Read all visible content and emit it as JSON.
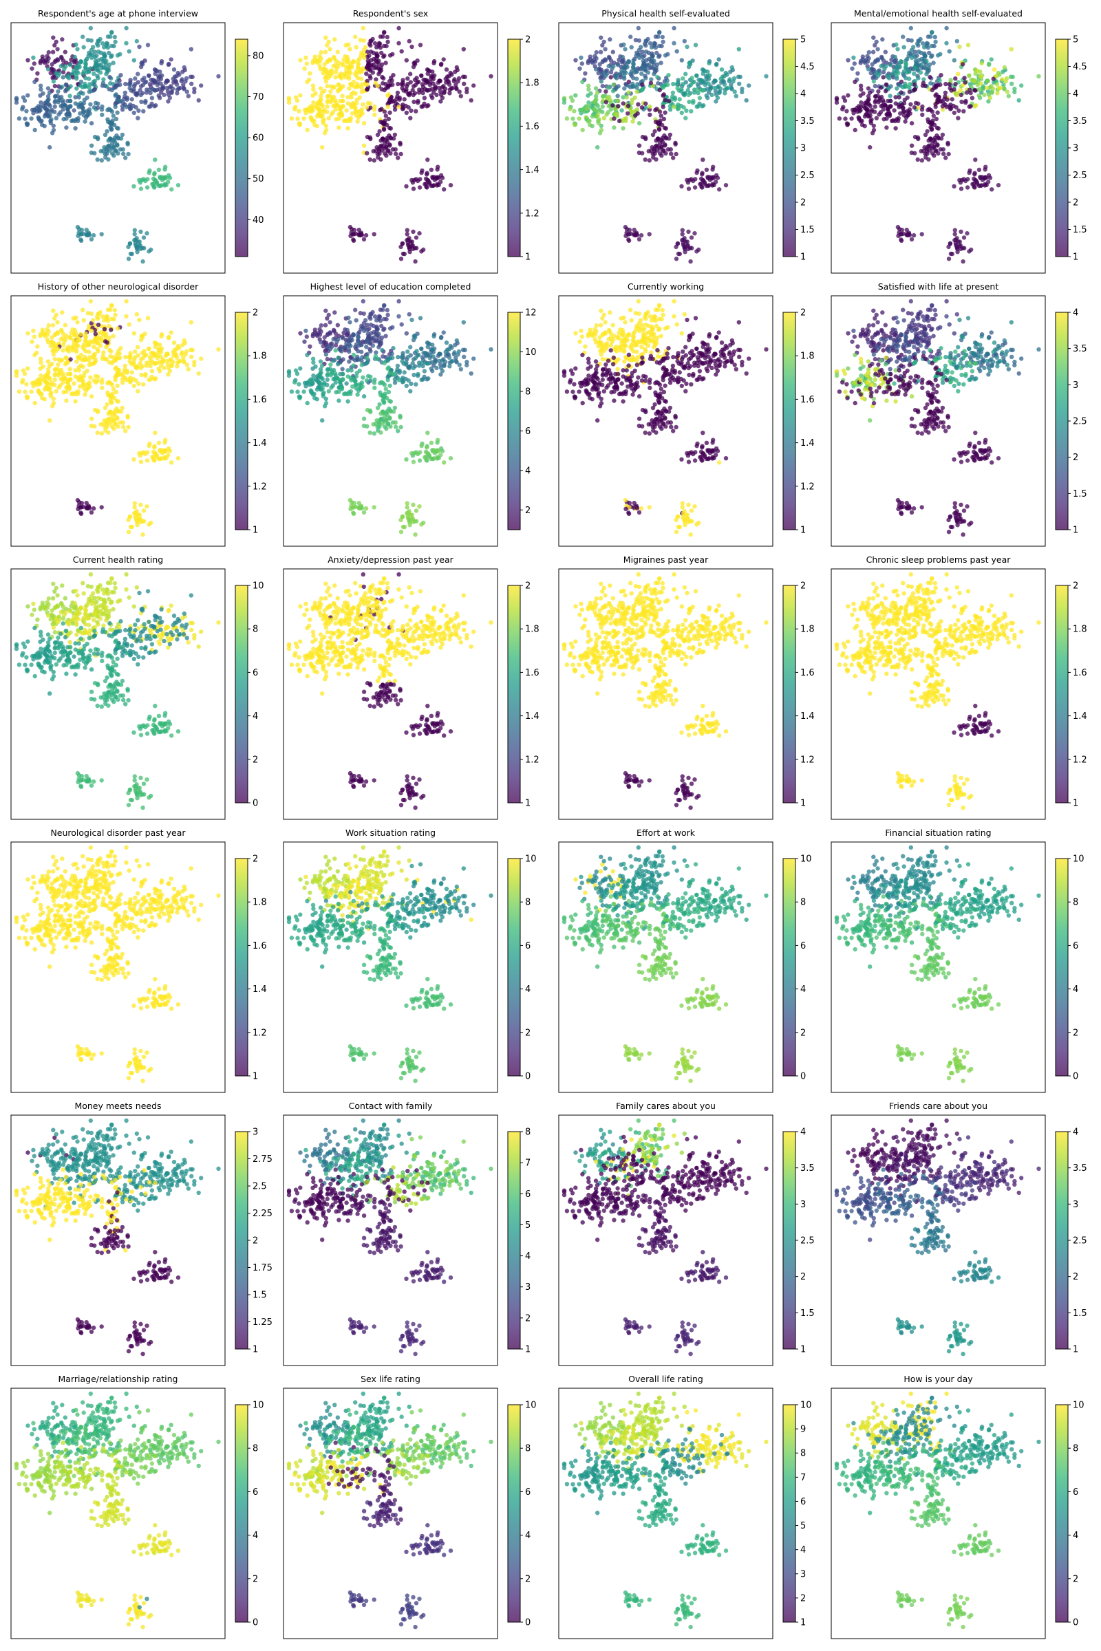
{
  "figure": {
    "panels": [
      {
        "title": "Respondent's age at phone interview",
        "cmin": 31,
        "cmax": 84,
        "ticks": [
          40,
          50,
          60,
          70,
          80
        ],
        "pattern": "age"
      },
      {
        "title": "Respondent's sex",
        "cmin": 1.0,
        "cmax": 2.0,
        "ticks": [
          1.0,
          1.2,
          1.4,
          1.6,
          1.8,
          2.0
        ],
        "pattern": "sex"
      },
      {
        "title": "Physical health self-evaluated",
        "cmin": 1.0,
        "cmax": 5.0,
        "ticks": [
          1.0,
          1.5,
          2.0,
          2.5,
          3.0,
          3.5,
          4.0,
          4.5,
          5.0
        ],
        "pattern": "low"
      },
      {
        "title": "Mental/emotional health self-evaluated",
        "cmin": 1.0,
        "cmax": 5.0,
        "ticks": [
          1.0,
          1.5,
          2.0,
          2.5,
          3.0,
          3.5,
          4.0,
          4.5,
          5.0
        ],
        "pattern": "verylow"
      },
      {
        "title": "History of other neurological disorder",
        "cmin": 1.0,
        "cmax": 2.0,
        "ticks": [
          1.0,
          1.2,
          1.4,
          1.6,
          1.8,
          2.0
        ],
        "pattern": "neuro"
      },
      {
        "title": "Highest level of education completed",
        "cmin": 1,
        "cmax": 12,
        "ticks": [
          2,
          4,
          6,
          8,
          10,
          12
        ],
        "pattern": "mixed"
      },
      {
        "title": "Currently working",
        "cmin": 1.0,
        "cmax": 2.0,
        "ticks": [
          1.0,
          1.2,
          1.4,
          1.6,
          1.8,
          2.0
        ],
        "pattern": "working"
      },
      {
        "title": "Satisfied with life at present",
        "cmin": 1.0,
        "cmax": 4.0,
        "ticks": [
          1.0,
          1.5,
          2.0,
          2.5,
          3.0,
          3.5,
          4.0
        ],
        "pattern": "verylow"
      },
      {
        "title": "Current health rating",
        "cmin": 0,
        "cmax": 10,
        "ticks": [
          0,
          2,
          4,
          6,
          8,
          10
        ],
        "pattern": "high"
      },
      {
        "title": "Anxiety/depression past year",
        "cmin": 1.0,
        "cmax": 2.0,
        "ticks": [
          1.0,
          1.2,
          1.4,
          1.6,
          1.8,
          2.0
        ],
        "pattern": "anxiety"
      },
      {
        "title": "Migraines past year",
        "cmin": 1.0,
        "cmax": 2.0,
        "ticks": [
          1.0,
          1.2,
          1.4,
          1.6,
          1.8,
          2.0
        ],
        "pattern": "migraine"
      },
      {
        "title": "Chronic sleep problems past year",
        "cmin": 1.0,
        "cmax": 2.0,
        "ticks": [
          1.0,
          1.2,
          1.4,
          1.6,
          1.8,
          2.0
        ],
        "pattern": "sleep"
      },
      {
        "title": "Neurological disorder past year",
        "cmin": 1.0,
        "cmax": 2.0,
        "ticks": [
          1.0,
          1.2,
          1.4,
          1.6,
          1.8,
          2.0
        ],
        "pattern": "allyellow"
      },
      {
        "title": "Work situation rating",
        "cmin": 0,
        "cmax": 10,
        "ticks": [
          0,
          2,
          4,
          6,
          8,
          10
        ],
        "pattern": "high"
      },
      {
        "title": "Effort at work",
        "cmin": 0,
        "cmax": 10,
        "ticks": [
          0,
          2,
          4,
          6,
          8,
          10
        ],
        "pattern": "high"
      },
      {
        "title": "Financial situation rating",
        "cmin": 0,
        "cmax": 10,
        "ticks": [
          0,
          2,
          4,
          6,
          8,
          10
        ],
        "pattern": "mid"
      },
      {
        "title": "Money meets needs",
        "cmin": 1.0,
        "cmax": 3.0,
        "ticks": [
          1.0,
          1.25,
          1.5,
          1.75,
          2.0,
          2.25,
          2.5,
          2.75,
          3.0
        ],
        "pattern": "money"
      },
      {
        "title": "Contact with family",
        "cmin": 1,
        "cmax": 8,
        "ticks": [
          1,
          2,
          3,
          4,
          5,
          6,
          7,
          8
        ],
        "pattern": "low"
      },
      {
        "title": "Family cares about you",
        "cmin": 1.0,
        "cmax": 4.0,
        "ticks": [
          1.0,
          1.5,
          2.0,
          2.5,
          3.0,
          3.5,
          4.0
        ],
        "pattern": "verylow"
      },
      {
        "title": "Friends care about you",
        "cmin": 1.0,
        "cmax": 4.0,
        "ticks": [
          1.0,
          1.5,
          2.0,
          2.5,
          3.0,
          3.5,
          4.0
        ],
        "pattern": "low"
      },
      {
        "title": "Marriage/relationship rating",
        "cmin": 0,
        "cmax": 10,
        "ticks": [
          0,
          2,
          4,
          6,
          8,
          10
        ],
        "pattern": "high"
      },
      {
        "title": "Sex life rating",
        "cmin": 0,
        "cmax": 10,
        "ticks": [
          0,
          2,
          4,
          6,
          8,
          10
        ],
        "pattern": "mixed"
      },
      {
        "title": "Overall life rating",
        "cmin": 1,
        "cmax": 10,
        "ticks": [
          1,
          2,
          3,
          4,
          5,
          6,
          7,
          8,
          9,
          10
        ],
        "pattern": "high"
      },
      {
        "title": "How is your day",
        "cmin": 0,
        "cmax": 10,
        "ticks": [
          0,
          2,
          4,
          6,
          8,
          10
        ],
        "pattern": "high"
      }
    ]
  },
  "chart_data": {
    "type": "scatter",
    "colormap": "viridis",
    "colormap_colors": [
      "#440154",
      "#482878",
      "#3e4989",
      "#31688e",
      "#26828e",
      "#1f9e89",
      "#35b779",
      "#6ece58",
      "#b5de2b",
      "#fde725"
    ],
    "point_alpha": 0.75,
    "clusters": [
      "main",
      "bottom_left",
      "bottom_right",
      "bottom_mid"
    ],
    "axes_ticks": "none",
    "colorbar": "right",
    "note_values": "Each panel shows the same 2-D embedding colored by one survey variable; ranges per panel are listed in figure.panels (cmin/cmax/ticks)."
  }
}
